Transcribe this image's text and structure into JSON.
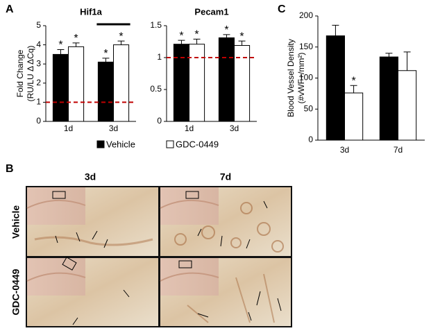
{
  "panel_labels": [
    "A",
    "B",
    "C"
  ],
  "chart_data": [
    {
      "type": "bar",
      "title": "Hif1a",
      "y_label": [
        "Fold Change",
        "(RU/LU Δ ΔCq)"
      ],
      "categories": [
        "1d",
        "3d"
      ],
      "series": [
        {
          "name": "Vehicle",
          "color": "#000000",
          "values": [
            3.5,
            3.1
          ],
          "errors": [
            0.25,
            0.2
          ],
          "markers": [
            "*",
            "*"
          ]
        },
        {
          "name": "GDC-0449",
          "color": "#ffffff",
          "values": [
            3.9,
            4.0
          ],
          "errors": [
            0.2,
            0.2
          ],
          "markers": [
            "*",
            "*"
          ]
        }
      ],
      "ylim": [
        0,
        5
      ],
      "yticks": [
        0,
        1,
        2,
        3,
        4,
        5
      ],
      "reference_line": 1,
      "reference_color": "#c00000",
      "significance_bar": "3d"
    },
    {
      "type": "bar",
      "title": "Pecam1",
      "categories": [
        "1d",
        "3d"
      ],
      "series": [
        {
          "color": "#000000",
          "values": [
            1.21,
            1.31
          ],
          "errors": [
            0.06,
            0.05
          ],
          "markers": [
            "*",
            "*"
          ]
        },
        {
          "color": "#ffffff",
          "values": [
            1.21,
            1.19
          ],
          "errors": [
            0.08,
            0.07
          ],
          "markers": [
            "*",
            "*"
          ]
        }
      ],
      "ylim": [
        0,
        1.5
      ],
      "yticks": [
        0,
        0.5,
        1,
        1.5
      ],
      "reference_line": 1,
      "reference_color": "#c00000"
    },
    {
      "type": "bar",
      "y_label": [
        "Blood Vessel Density",
        "(#vWF+/mm²)"
      ],
      "categories": [
        "3d",
        "7d"
      ],
      "series": [
        {
          "color": "#000000",
          "values": [
            168,
            134
          ],
          "errors": [
            17,
            6
          ],
          "markers": [
            null,
            null
          ]
        },
        {
          "color": "#ffffff",
          "values": [
            76,
            112
          ],
          "errors": [
            12,
            30
          ],
          "markers": [
            "*",
            null
          ]
        }
      ],
      "ylim": [
        0,
        200
      ],
      "yticks": [
        0,
        50,
        100,
        150,
        200
      ]
    }
  ],
  "micrographs": {
    "columns": [
      "3d",
      "7d"
    ],
    "rows": [
      "Vehicle",
      "GDC-0449"
    ]
  }
}
